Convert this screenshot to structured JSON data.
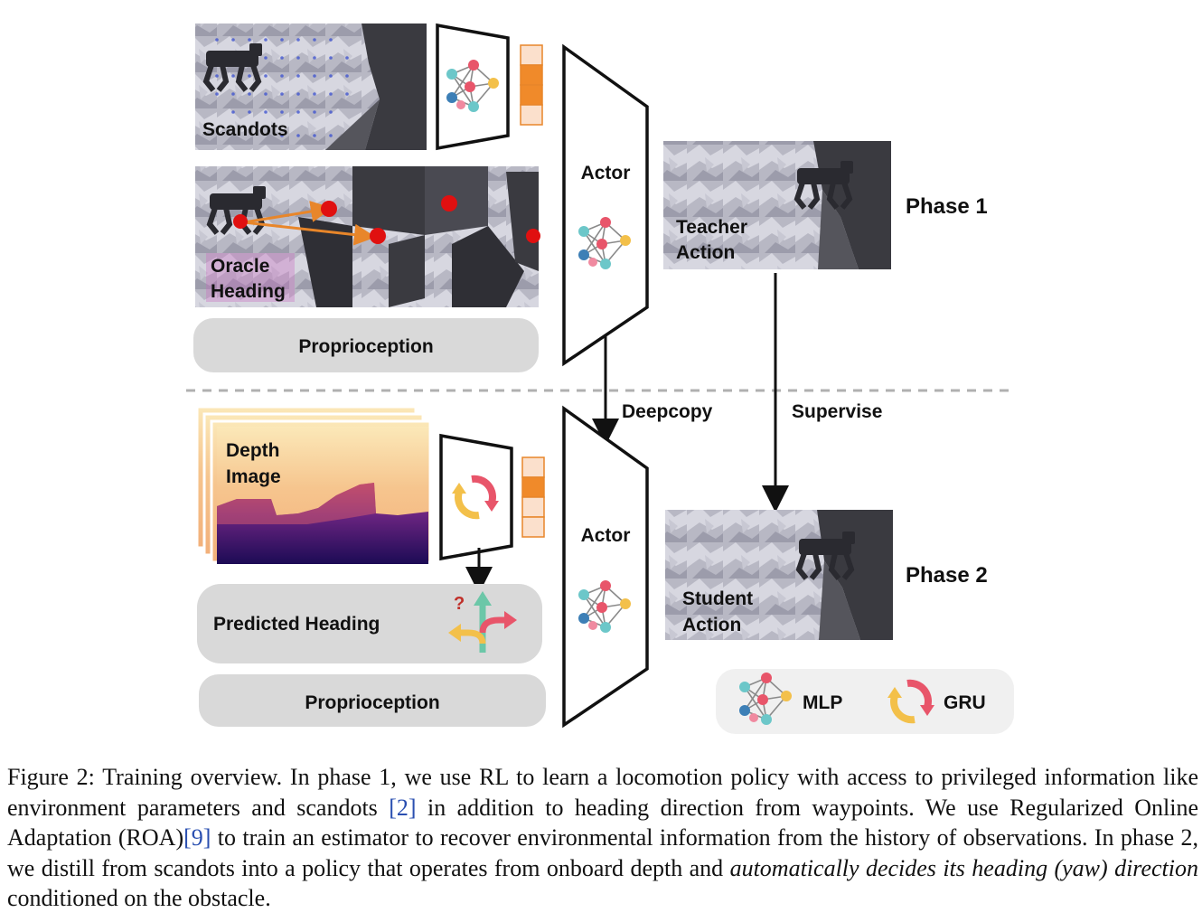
{
  "figure": {
    "panels": {
      "scandots": "Scandots",
      "oracle_heading_line1": "Oracle",
      "oracle_heading_line2": "Heading",
      "proprioception_top": "Proprioception",
      "actor_top": "Actor",
      "teacher_line1": "Teacher",
      "teacher_line2": "Action",
      "phase1": "Phase 1",
      "deepcopy": "Deepcopy",
      "supervise": "Supervise",
      "depth_line1": "Depth",
      "depth_line2": "Image",
      "predicted_heading": "Predicted Heading",
      "question_mark": "?",
      "proprioception_bottom": "Proprioception",
      "actor_bottom": "Actor",
      "student_line1": "Student",
      "student_line2": "Action",
      "phase2": "Phase 2"
    },
    "legend": {
      "mlp": "MLP",
      "gru": "GRU"
    },
    "colors": {
      "orange_cell": "#f08a2a",
      "light_cell": "#fbe0cc",
      "pill": "#d9d9d9",
      "node_red": "#e8556a",
      "node_teal": "#6cc7c9",
      "node_blue": "#3d7fb6",
      "node_yellow": "#f3c04a",
      "node_pink": "#f08aa0"
    }
  },
  "caption": {
    "prefix": "Figure 2:",
    "part1": " Training overview. In phase 1, we use RL to learn a locomotion policy with access to privileged information like environment parameters and scandots ",
    "cite1": "[2]",
    "part2": " in addition to heading direction from waypoints. We use Regularized Online Adaptation (ROA)",
    "cite2": "[9]",
    "part3": " to train an estimator to recover environmental information from the history of observations. In phase 2, we distill from scandots into a policy that operates from onboard depth and ",
    "italic": "automatically decides its heading (yaw) direction",
    "part4": " conditioned on the obstacle."
  }
}
